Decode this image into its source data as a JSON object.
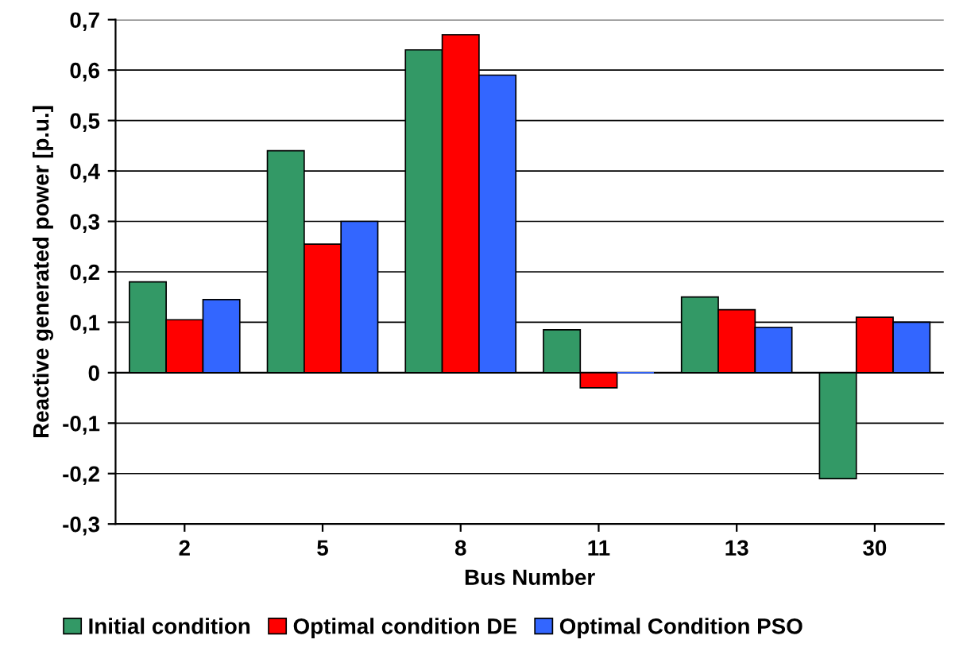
{
  "chart_data": {
    "type": "bar",
    "xlabel": "Bus Number",
    "ylabel": "Reactive generated power [p.u.]",
    "categories": [
      "2",
      "5",
      "8",
      "11",
      "13",
      "30"
    ],
    "series": [
      {
        "name": "Initial condition",
        "color": "#339966",
        "values": [
          0.18,
          0.44,
          0.64,
          0.085,
          0.15,
          -0.21
        ]
      },
      {
        "name": "Optimal condition DE",
        "color": "#ff0000",
        "values": [
          0.105,
          0.255,
          0.67,
          -0.03,
          0.125,
          0.11
        ]
      },
      {
        "name": "Optimal Condition PSO",
        "color": "#3366ff",
        "values": [
          0.145,
          0.3,
          0.59,
          0.0,
          0.09,
          0.1
        ]
      }
    ],
    "ylim": [
      -0.3,
      0.7
    ],
    "yticks": [
      {
        "value": -0.3,
        "label": "-0,3"
      },
      {
        "value": -0.2,
        "label": "-0,2"
      },
      {
        "value": -0.1,
        "label": "-0,1"
      },
      {
        "value": 0,
        "label": "0"
      },
      {
        "value": 0.1,
        "label": "0,1"
      },
      {
        "value": 0.2,
        "label": "0,2"
      },
      {
        "value": 0.3,
        "label": "0,3"
      },
      {
        "value": 0.4,
        "label": "0,4"
      },
      {
        "value": 0.5,
        "label": "0,5"
      },
      {
        "value": 0.6,
        "label": "0,6"
      },
      {
        "value": 0.7,
        "label": "0,7"
      }
    ],
    "grid": "y",
    "legend": "bottom"
  }
}
